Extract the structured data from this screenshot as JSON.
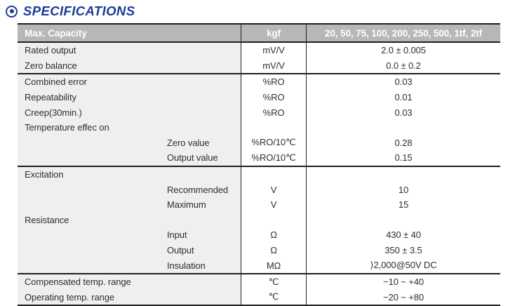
{
  "title": {
    "text": "SPECIFICATIONS",
    "bullet_icon": "double-circle-bullet-icon",
    "color": "#1c3c96"
  },
  "table": {
    "header": {
      "label": "Max. Capacity",
      "unit": "kgf",
      "capacities": "20, 50, 75, 100, 200, 250, 500, 1tf, 2tf"
    },
    "colors": {
      "header_bg": "#b6b7b9",
      "header_text": "#ffffff",
      "label_column_bg": "#edeff0",
      "line": "#1f1f1f",
      "body_text": "#2f2f31"
    },
    "rows": [
      {
        "label": "Rated output",
        "indent": false,
        "unit": "mV/V",
        "value": "2.0 ± 0.005",
        "section_end": false
      },
      {
        "label": "Zero balance",
        "indent": false,
        "unit": "mV/V",
        "value": "0.0 ± 0.2",
        "section_end": true
      },
      {
        "label": "Combined error",
        "indent": false,
        "unit": "%RO",
        "value": "0.03",
        "section_end": false
      },
      {
        "label": "Repeatability",
        "indent": false,
        "unit": "%RO",
        "value": "0.01",
        "section_end": false
      },
      {
        "label": "Creep(30min.)",
        "indent": false,
        "unit": "%RO",
        "value": "0.03",
        "section_end": false
      },
      {
        "label": "Temperature effec on",
        "indent": false,
        "unit": "",
        "value": "",
        "section_end": false
      },
      {
        "label": "Zero value",
        "indent": true,
        "unit": "%RO/10℃",
        "value": "0.28",
        "section_end": false
      },
      {
        "label": "Output value",
        "indent": true,
        "unit": "%RO/10℃",
        "value": "0.15",
        "section_end": true
      },
      {
        "label": "Excitation",
        "indent": false,
        "unit": "",
        "value": "",
        "section_end": false
      },
      {
        "label": "Recommended",
        "indent": true,
        "unit": "V",
        "value": "10",
        "section_end": false
      },
      {
        "label": "Maximum",
        "indent": true,
        "unit": "V",
        "value": "15",
        "section_end": false
      },
      {
        "label": "Resistance",
        "indent": false,
        "unit": "",
        "value": "",
        "section_end": false
      },
      {
        "label": "Input",
        "indent": true,
        "unit": "Ω",
        "value": "430 ± 40",
        "section_end": false
      },
      {
        "label": "Output",
        "indent": true,
        "unit": "Ω",
        "value": "350 ± 3.5",
        "section_end": false
      },
      {
        "label": "Insulation",
        "indent": true,
        "unit": "MΩ",
        "value": "⟩2,000@50V DC",
        "section_end": true
      },
      {
        "label": "Compensated temp. range",
        "indent": false,
        "unit": "℃",
        "value": "−10 ~ +40",
        "section_end": false
      },
      {
        "label": "Operating temp. range",
        "indent": false,
        "unit": "℃",
        "value": "−20 ~ +80",
        "section_end": true
      }
    ]
  }
}
